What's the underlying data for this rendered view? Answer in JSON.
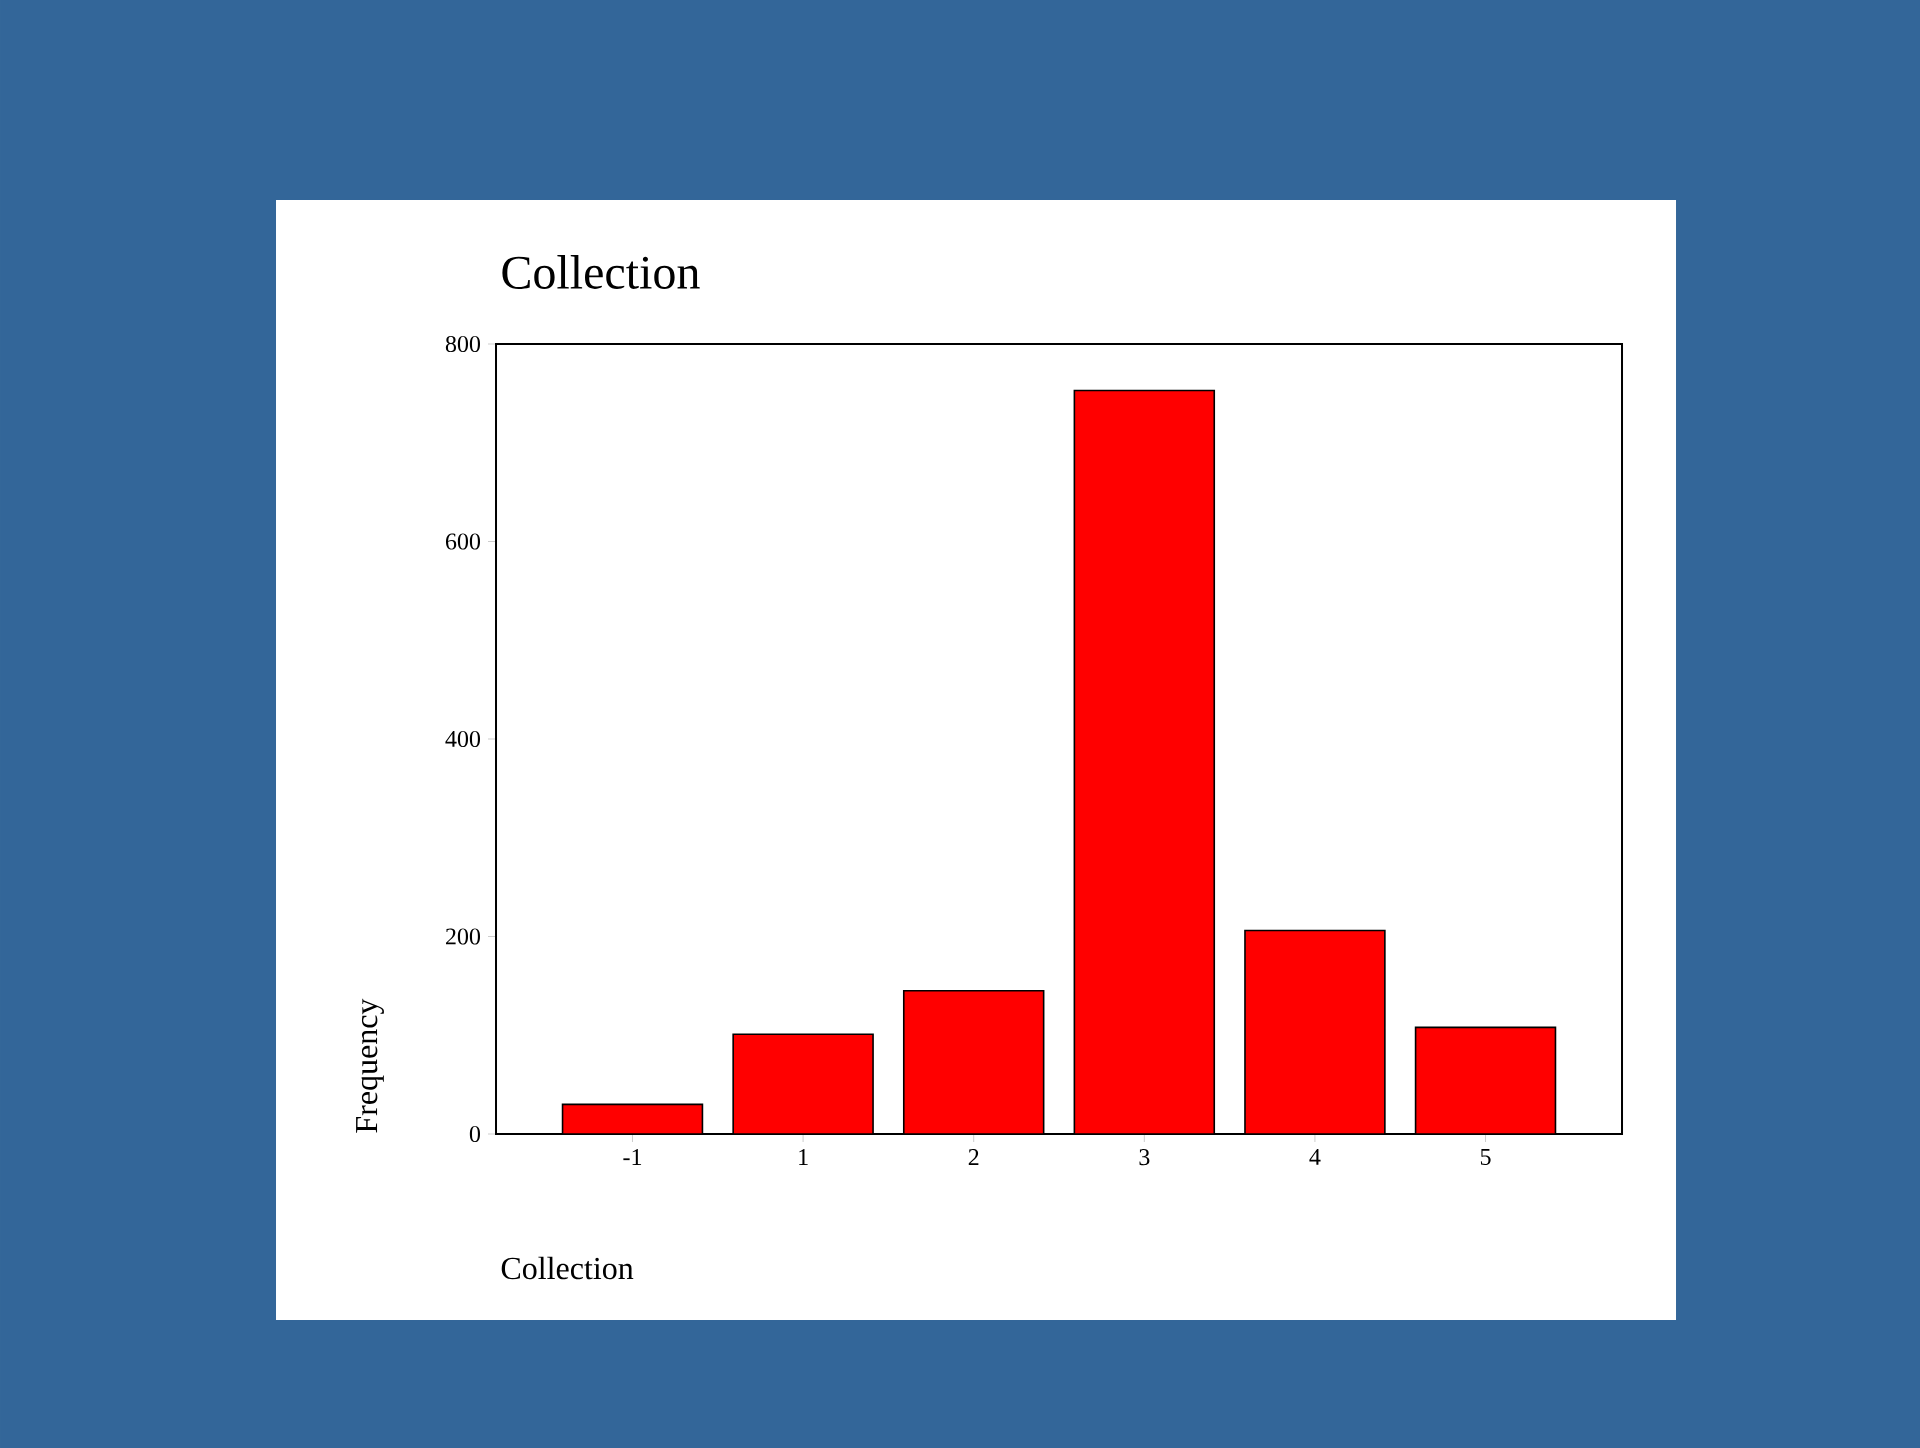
{
  "chart_data": {
    "type": "bar",
    "title": "Collection",
    "xlabel": "Collection",
    "ylabel": "Frequency",
    "categories": [
      "-1",
      "1",
      "2",
      "3",
      "4",
      "5"
    ],
    "values": [
      30,
      101,
      145,
      753,
      206,
      108
    ],
    "color": "#ff0000",
    "ylim": [
      0,
      800
    ],
    "yticks": [
      0,
      200,
      400,
      600,
      800
    ],
    "grid": false,
    "legend": false
  }
}
